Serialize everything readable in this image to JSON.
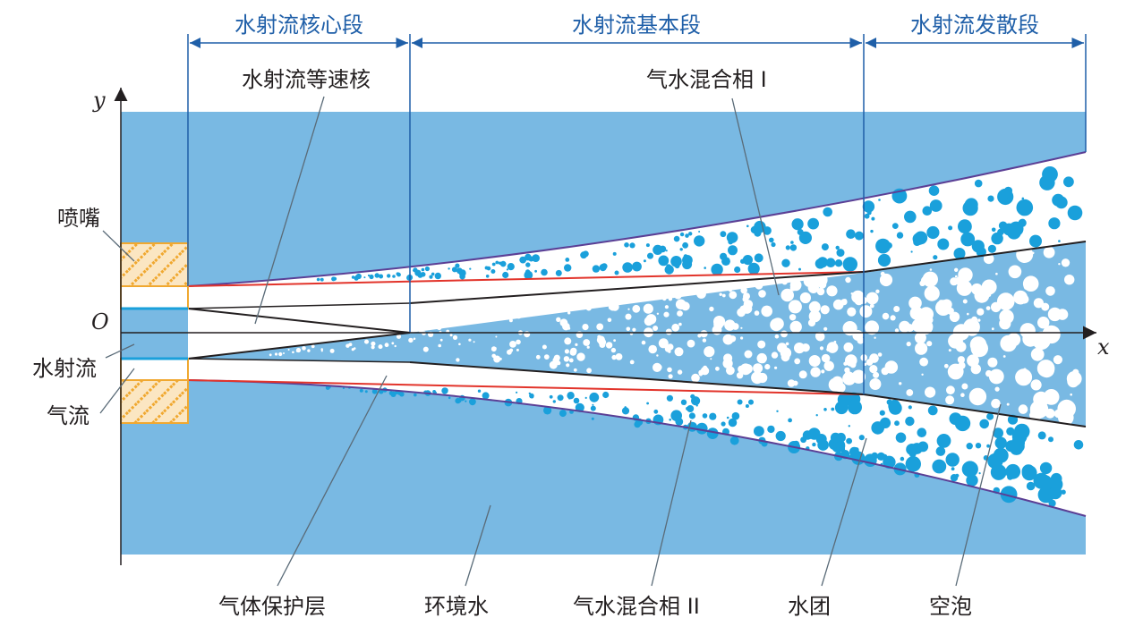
{
  "sections": {
    "core": "水射流核心段",
    "basic": "水射流基本段",
    "diffuse": "水射流发散段"
  },
  "axes": {
    "x": "x",
    "y": "y",
    "origin": "O"
  },
  "labels": {
    "constant_velocity_core": "水射流等速核",
    "gas_water_mix_1": "气水混合相 I",
    "nozzle": "喷嘴",
    "water_jet": "水射流",
    "air_flow": "气流",
    "gas_shield": "气体保护层",
    "ambient_water": "环境水",
    "gas_water_mix_2": "气水混合相 II",
    "water_cluster": "水团",
    "cavity_bubble": "空泡"
  },
  "colors": {
    "water": "#79b9e3",
    "bubble_blue": "#1aa0db",
    "boundary_purple": "#5b3f95",
    "boundary_red": "#e2342b",
    "nozzle_orange": "#f0a830",
    "nozzle_fill": "#fbe6c2",
    "section_blue": "#1f5fa8"
  }
}
